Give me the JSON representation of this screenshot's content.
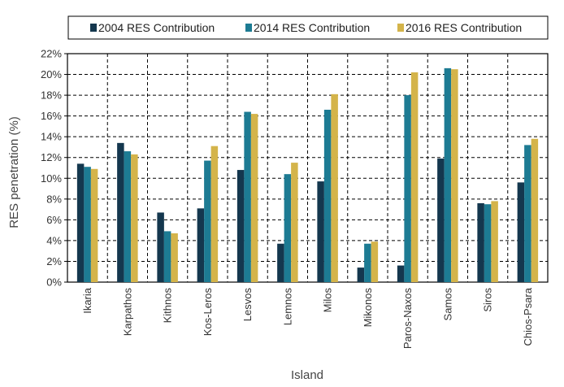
{
  "chart_data": {
    "type": "bar",
    "categories": [
      "Ikaria",
      "Karpathos",
      "Kithnos",
      "Kos-Leros",
      "Lesvos",
      "Lemnos",
      "Milos",
      "Mikonos",
      "Paros-Naxos",
      "Samos",
      "Siros",
      "Chios-Psara"
    ],
    "series": [
      {
        "name": "2004 RES Contribution",
        "color": "#14374e",
        "values": [
          11.4,
          13.4,
          6.7,
          7.1,
          10.8,
          3.7,
          9.7,
          1.4,
          1.6,
          11.9,
          7.6,
          9.6
        ]
      },
      {
        "name": "2014 RES Contribution",
        "color": "#1d7b93",
        "values": [
          11.1,
          12.6,
          4.9,
          11.7,
          16.4,
          10.4,
          16.6,
          3.7,
          18.0,
          20.6,
          7.5,
          13.2
        ]
      },
      {
        "name": "2016 RES Contribution",
        "color": "#d4b44a",
        "values": [
          10.9,
          12.3,
          4.7,
          13.1,
          16.2,
          11.5,
          18.1,
          3.9,
          20.2,
          20.5,
          7.8,
          13.8
        ]
      }
    ],
    "xlabel": "Island",
    "ylabel": "RES penetration (%)",
    "ylim": [
      0,
      22
    ],
    "yticks": [
      "0%",
      "2%",
      "4%",
      "6%",
      "8%",
      "10%",
      "12%",
      "14%",
      "16%",
      "18%",
      "20%",
      "22%"
    ],
    "grid": "dashed",
    "legend_position": "top"
  }
}
